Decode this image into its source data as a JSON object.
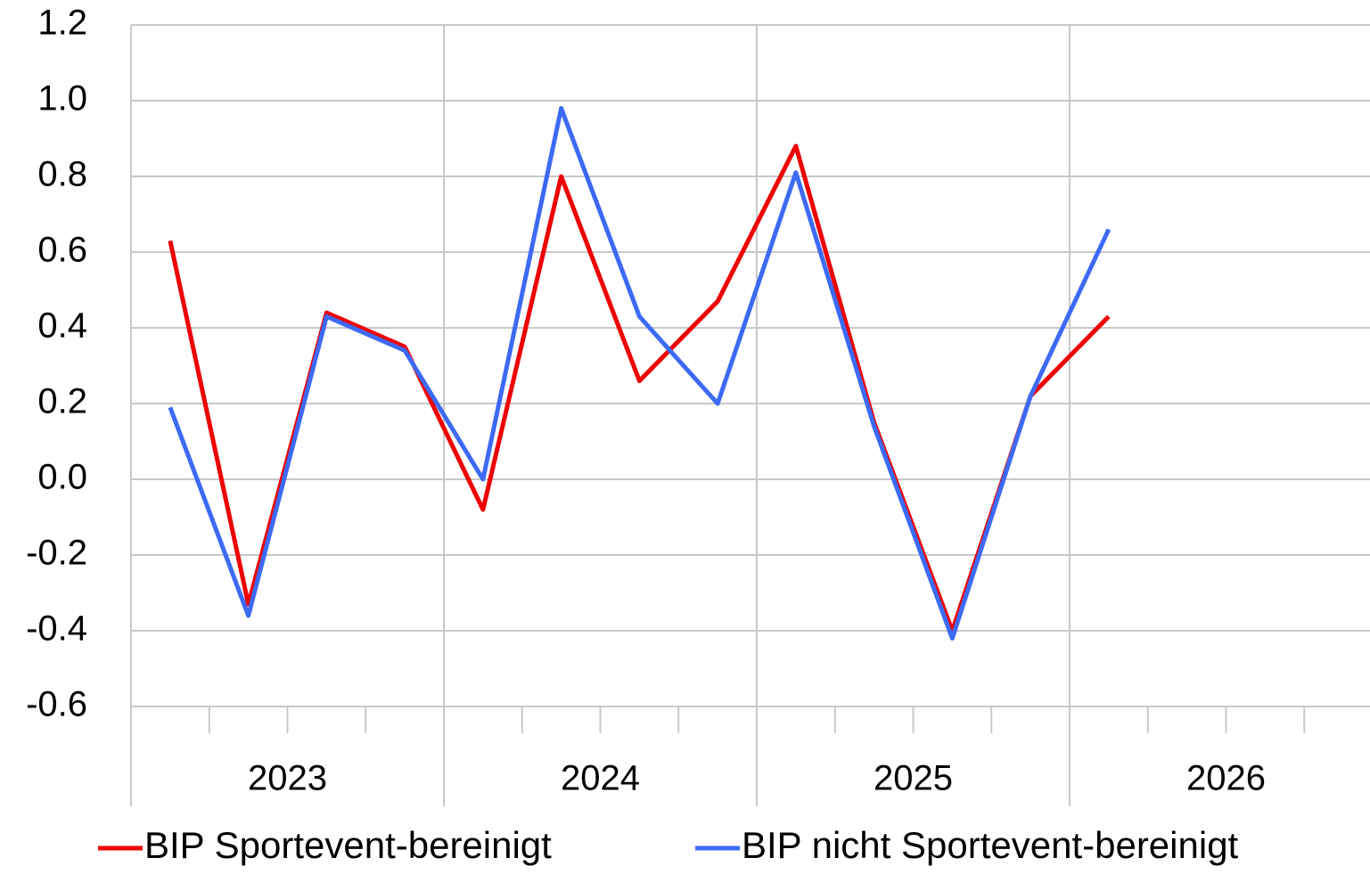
{
  "chart_data": {
    "type": "line",
    "years": [
      "2023",
      "2024",
      "2025",
      "2026"
    ],
    "series": [
      {
        "name": "BIP Sportevent-bereinigt",
        "color": "#ee0000",
        "values": [
          0.63,
          -0.33,
          0.44,
          0.35,
          -0.08,
          0.8,
          0.26,
          0.47,
          0.88,
          0.15,
          -0.4,
          0.22,
          0.43,
          null,
          null,
          null
        ]
      },
      {
        "name": "BIP nicht Sportevent-bereinigt",
        "color": "#3d6af5",
        "values": [
          0.19,
          -0.36,
          0.43,
          0.34,
          0.0,
          0.98,
          0.43,
          0.2,
          0.81,
          0.14,
          -0.42,
          0.22,
          0.66,
          null,
          null,
          null
        ]
      }
    ],
    "ylim": [
      -0.6,
      1.2
    ],
    "yticks": [
      {
        "value": -0.6,
        "label": "-0.6"
      },
      {
        "value": -0.4,
        "label": "-0.4"
      },
      {
        "value": -0.2,
        "label": "-0.2"
      },
      {
        "value": 0,
        "label": "0.0"
      },
      {
        "value": 0.2,
        "label": "0.2"
      },
      {
        "value": 0.4,
        "label": "0.4"
      },
      {
        "value": 0.6,
        "label": "0.6"
      },
      {
        "value": 0.8,
        "label": "0.8"
      },
      {
        "value": 1.0,
        "label": "1.0"
      },
      {
        "value": 1.2,
        "label": "1.2"
      }
    ],
    "grid": true,
    "legend": "bottom"
  }
}
